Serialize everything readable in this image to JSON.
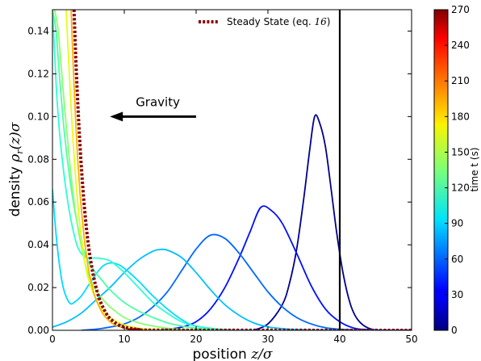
{
  "chart_data": {
    "type": "line",
    "xlabel_text": "position ",
    "xlabel_math": "z/σ",
    "ylabel_text": "density ",
    "ylabel_math": "ρ",
    "ylabel_math_sub": "r",
    "ylabel_math_rest": "(z)σ",
    "xlim": [
      0,
      50
    ],
    "ylim": [
      0,
      0.15
    ],
    "xticks": [
      0,
      10,
      20,
      30,
      40,
      50
    ],
    "xtick_labels": [
      "0",
      "10",
      "20",
      "30",
      "40",
      "50"
    ],
    "yticks": [
      0,
      0.02,
      0.04,
      0.06,
      0.08,
      0.1,
      0.12,
      0.14
    ],
    "ytick_labels": [
      "0.00",
      "0.02",
      "0.04",
      "0.06",
      "0.08",
      "0.10",
      "0.12",
      "0.14"
    ],
    "grid": false,
    "legend": {
      "placement": "top-center",
      "label_text": "Steady State (eq. ",
      "label_num": "16",
      "label_close": ")"
    },
    "vertical_line_x": 40,
    "annotation": {
      "text": "Gravity",
      "arrow_from_x": 20,
      "arrow_to_x": 8,
      "arrow_y": 0.1
    },
    "colorbar": {
      "label": "time t (s)",
      "range": [
        0,
        270
      ],
      "ticks": [
        0,
        30,
        60,
        90,
        120,
        150,
        180,
        210,
        240,
        270
      ],
      "tick_labels": [
        "0",
        "30",
        "60",
        "90",
        "120",
        "150",
        "180",
        "210",
        "240",
        "270"
      ],
      "colormap": "jet"
    },
    "series": [
      {
        "time": 10,
        "color": "#00008f",
        "x": [
          28,
          30,
          32,
          33,
          34,
          35,
          35.8,
          36.5,
          37.2,
          38,
          38.8,
          39.6,
          40.5,
          41.5,
          42.5,
          44,
          46,
          50
        ],
        "y": [
          0,
          0.003,
          0.012,
          0.022,
          0.038,
          0.062,
          0.084,
          0.1,
          0.097,
          0.086,
          0.066,
          0.045,
          0.026,
          0.012,
          0.005,
          0.001,
          0,
          0
        ]
      },
      {
        "time": 40,
        "color": "#0010ff",
        "x": [
          14,
          16,
          18,
          20,
          22,
          24,
          26,
          27.5,
          29,
          30.5,
          32,
          34,
          36,
          38,
          40,
          42,
          44,
          46,
          50
        ],
        "y": [
          0,
          0.0005,
          0.0015,
          0.004,
          0.01,
          0.02,
          0.034,
          0.046,
          0.0575,
          0.056,
          0.05,
          0.036,
          0.021,
          0.01,
          0.004,
          0.001,
          0.0003,
          0,
          0
        ]
      },
      {
        "time": 60,
        "color": "#0068ff",
        "x": [
          4,
          6,
          8,
          10,
          12,
          14,
          16,
          18,
          20,
          22,
          24,
          26,
          28,
          30,
          32,
          34,
          36,
          38,
          40,
          42,
          44,
          48
        ],
        "y": [
          0,
          0.0005,
          0.0015,
          0.003,
          0.006,
          0.011,
          0.018,
          0.028,
          0.038,
          0.0445,
          0.043,
          0.036,
          0.027,
          0.018,
          0.011,
          0.006,
          0.003,
          0.0012,
          0.0005,
          0.0002,
          0,
          0
        ]
      },
      {
        "time": 80,
        "color": "#00c0ff",
        "x": [
          0,
          2,
          4,
          6,
          8,
          10,
          12,
          14,
          15,
          16,
          18,
          20,
          22,
          24,
          26,
          28,
          30,
          32,
          34,
          36,
          40,
          45
        ],
        "y": [
          0.0015,
          0.004,
          0.008,
          0.014,
          0.02,
          0.027,
          0.033,
          0.037,
          0.0378,
          0.0375,
          0.034,
          0.027,
          0.019,
          0.012,
          0.007,
          0.0035,
          0.0016,
          0.0008,
          0.0003,
          0.0001,
          0,
          0
        ]
      },
      {
        "time": 95,
        "color": "#00dcff",
        "x": [
          0,
          0.5,
          1,
          1.5,
          2,
          2.5,
          3,
          4,
          5,
          6,
          7,
          8,
          9,
          10,
          12,
          14,
          16,
          18,
          20,
          24,
          28
        ],
        "y": [
          0.066,
          0.045,
          0.03,
          0.02,
          0.015,
          0.0125,
          0.013,
          0.016,
          0.021,
          0.026,
          0.03,
          0.0315,
          0.031,
          0.029,
          0.023,
          0.016,
          0.01,
          0.005,
          0.002,
          0.0003,
          0
        ]
      },
      {
        "time": 110,
        "color": "#2cffd0",
        "x": [
          0,
          0.3,
          0.6,
          1,
          1.5,
          2,
          2.5,
          3,
          3.5,
          4,
          4.5,
          5,
          6,
          7,
          8,
          9,
          10,
          12,
          14,
          16,
          18,
          20,
          24
        ],
        "y": [
          0.15,
          0.13,
          0.11,
          0.092,
          0.076,
          0.063,
          0.053,
          0.045,
          0.039,
          0.036,
          0.0345,
          0.0338,
          0.0338,
          0.0335,
          0.0325,
          0.03,
          0.027,
          0.02,
          0.013,
          0.008,
          0.004,
          0.002,
          0
        ]
      },
      {
        "time": 130,
        "color": "#4cffa8",
        "x": [
          0,
          0.5,
          1,
          1.5,
          2,
          2.5,
          3,
          3.5,
          4,
          5,
          6,
          7,
          8,
          10,
          12,
          14,
          16,
          18,
          20,
          22,
          24
        ],
        "y": [
          0.15,
          0.14,
          0.118,
          0.098,
          0.082,
          0.069,
          0.058,
          0.049,
          0.041,
          0.032,
          0.027,
          0.023,
          0.019,
          0.013,
          0.009,
          0.006,
          0.0035,
          0.002,
          0.001,
          0.0005,
          0
        ]
      },
      {
        "time": 150,
        "color": "#8cff6a",
        "x": [
          0.3,
          0.8,
          1.3,
          1.8,
          2.3,
          2.8,
          3.3,
          3.8,
          4.3,
          5,
          6,
          7,
          8,
          10,
          12,
          14,
          16,
          18,
          20,
          22
        ],
        "y": [
          0.15,
          0.14,
          0.12,
          0.1,
          0.082,
          0.066,
          0.053,
          0.043,
          0.035,
          0.026,
          0.019,
          0.0145,
          0.011,
          0.006,
          0.0035,
          0.002,
          0.001,
          0.0005,
          0.0002,
          0
        ]
      },
      {
        "time": 180,
        "color": "#e4ff14",
        "x": [
          1.9,
          2.2,
          2.5,
          2.8,
          3.1,
          3.4,
          3.7,
          4,
          4.5,
          5,
          6,
          7,
          8,
          9,
          10,
          12,
          14,
          16,
          18
        ],
        "y": [
          0.15,
          0.13,
          0.11,
          0.092,
          0.077,
          0.064,
          0.053,
          0.044,
          0.032,
          0.024,
          0.015,
          0.0095,
          0.006,
          0.004,
          0.0025,
          0.001,
          0.0004,
          0.0001,
          0
        ]
      },
      {
        "time": 200,
        "color": "#ffb000",
        "x": [
          2.6,
          2.9,
          3.2,
          3.5,
          3.8,
          4.1,
          4.5,
          5,
          5.5,
          6,
          7,
          8,
          9,
          10,
          12,
          14
        ],
        "y": [
          0.15,
          0.123,
          0.1,
          0.081,
          0.066,
          0.054,
          0.041,
          0.029,
          0.021,
          0.015,
          0.0079,
          0.0041,
          0.0021,
          0.0011,
          0.0003,
          0
        ]
      }
    ],
    "steady_state": {
      "color": "#8b0000",
      "x": [
        3,
        3.3,
        3.6,
        3.9,
        4.2,
        4.6,
        5,
        5.5,
        6,
        6.5,
        7,
        7.5,
        8,
        9,
        10,
        11,
        12,
        14,
        50
      ],
      "y": [
        0.15,
        0.123,
        0.101,
        0.083,
        0.068,
        0.052,
        0.04,
        0.029,
        0.021,
        0.015,
        0.011,
        0.0078,
        0.0056,
        0.0029,
        0.0015,
        0.0008,
        0.0004,
        0.0001,
        0
      ]
    }
  }
}
